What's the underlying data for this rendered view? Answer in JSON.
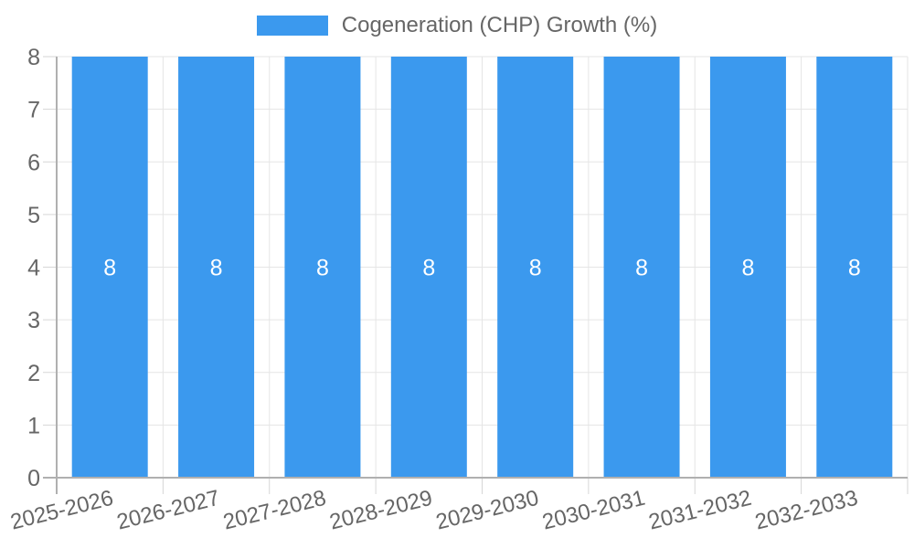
{
  "chart_data": {
    "type": "bar",
    "legend": {
      "label": "Cogeneration (CHP) Growth (%)",
      "position": "top"
    },
    "categories": [
      "2025-2026",
      "2026-2027",
      "2027-2028",
      "2028-2029",
      "2029-2030",
      "2030-2031",
      "2031-2032",
      "2032-2033"
    ],
    "series": [
      {
        "name": "Cogeneration (CHP) Growth (%)",
        "values": [
          8,
          8,
          8,
          8,
          8,
          8,
          8,
          8
        ]
      }
    ],
    "bar_value_labels": [
      "8",
      "8",
      "8",
      "8",
      "8",
      "8",
      "8",
      "8"
    ],
    "xlabel": "",
    "ylabel": "",
    "ylim": [
      0,
      8
    ],
    "yticks": [
      0,
      1,
      2,
      3,
      4,
      5,
      6,
      7,
      8
    ],
    "grid": true,
    "x_label_rotation_deg": -14,
    "colors": {
      "bar": "#3b99ee",
      "grid": "#e5e5e5",
      "tick": "#d6d6d6",
      "axis": "#b0b0b0",
      "tick_label": "#666666",
      "legend_label": "#666666",
      "bar_value_label": "#ffffff"
    }
  }
}
